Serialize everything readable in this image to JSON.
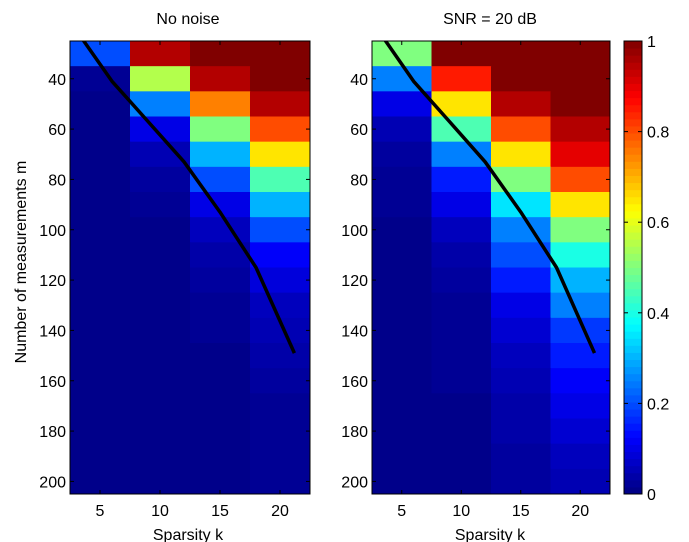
{
  "chart_data": [
    {
      "type": "heatmap",
      "title": "No noise",
      "xlabel": "Sparsity k",
      "ylabel": "Number of measurements m",
      "x_centers": [
        5,
        10,
        15,
        20
      ],
      "x_ticks": [
        5,
        10,
        15,
        20
      ],
      "y_centers": [
        30,
        40,
        50,
        60,
        70,
        80,
        90,
        100,
        110,
        120,
        130,
        140,
        150,
        160,
        170,
        180,
        190,
        200
      ],
      "y_ticks": [
        40,
        60,
        80,
        100,
        120,
        140,
        160,
        180,
        200
      ],
      "y_reversed": true,
      "values": [
        [
          0.2,
          0.95,
          1.0,
          1.0
        ],
        [
          0.02,
          0.55,
          0.95,
          1.0
        ],
        [
          0.01,
          0.25,
          0.75,
          0.95
        ],
        [
          0.01,
          0.1,
          0.5,
          0.8
        ],
        [
          0.01,
          0.05,
          0.3,
          0.65
        ],
        [
          0.01,
          0.03,
          0.2,
          0.45
        ],
        [
          0.01,
          0.02,
          0.1,
          0.3
        ],
        [
          0.01,
          0.01,
          0.06,
          0.2
        ],
        [
          0.01,
          0.01,
          0.04,
          0.12
        ],
        [
          0.01,
          0.01,
          0.03,
          0.09
        ],
        [
          0.01,
          0.01,
          0.02,
          0.06
        ],
        [
          0.01,
          0.01,
          0.02,
          0.05
        ],
        [
          0.01,
          0.01,
          0.01,
          0.04
        ],
        [
          0.01,
          0.01,
          0.01,
          0.03
        ],
        [
          0.01,
          0.01,
          0.01,
          0.02
        ],
        [
          0.01,
          0.01,
          0.01,
          0.02
        ],
        [
          0.01,
          0.01,
          0.01,
          0.02
        ],
        [
          0.01,
          0.01,
          0.01,
          0.02
        ]
      ],
      "curve": {
        "x": [
          3.5,
          6,
          9,
          12,
          15,
          18,
          21.2
        ],
        "y": [
          24,
          41,
          57,
          73,
          93,
          115,
          149
        ]
      }
    },
    {
      "type": "heatmap",
      "title": "SNR = 20 dB",
      "xlabel": "Sparsity k",
      "ylabel": "",
      "x_centers": [
        5,
        10,
        15,
        20
      ],
      "x_ticks": [
        5,
        10,
        15,
        20
      ],
      "y_centers": [
        30,
        40,
        50,
        60,
        70,
        80,
        90,
        100,
        110,
        120,
        130,
        140,
        150,
        160,
        170,
        180,
        190,
        200
      ],
      "y_ticks": [
        40,
        60,
        80,
        100,
        120,
        140,
        160,
        180,
        200
      ],
      "y_reversed": true,
      "values": [
        [
          0.5,
          1.0,
          1.0,
          1.0
        ],
        [
          0.25,
          0.85,
          1.0,
          1.0
        ],
        [
          0.1,
          0.65,
          0.95,
          1.0
        ],
        [
          0.05,
          0.45,
          0.8,
          0.95
        ],
        [
          0.03,
          0.25,
          0.65,
          0.9
        ],
        [
          0.02,
          0.15,
          0.5,
          0.8
        ],
        [
          0.02,
          0.1,
          0.35,
          0.65
        ],
        [
          0.01,
          0.06,
          0.25,
          0.5
        ],
        [
          0.01,
          0.04,
          0.2,
          0.4
        ],
        [
          0.01,
          0.03,
          0.15,
          0.3
        ],
        [
          0.01,
          0.02,
          0.1,
          0.25
        ],
        [
          0.01,
          0.02,
          0.08,
          0.18
        ],
        [
          0.01,
          0.02,
          0.06,
          0.15
        ],
        [
          0.01,
          0.02,
          0.05,
          0.12
        ],
        [
          0.01,
          0.01,
          0.04,
          0.1
        ],
        [
          0.01,
          0.01,
          0.04,
          0.08
        ],
        [
          0.01,
          0.01,
          0.03,
          0.06
        ],
        [
          0.01,
          0.01,
          0.03,
          0.05
        ]
      ],
      "curve": {
        "x": [
          3.5,
          6,
          9,
          12,
          15,
          18,
          21.2
        ],
        "y": [
          24,
          41,
          57,
          73,
          93,
          115,
          149
        ]
      }
    }
  ],
  "colorbar": {
    "min": 0,
    "max": 1,
    "ticks": [
      0,
      0.2,
      0.4,
      0.6,
      0.8,
      1
    ],
    "tick_labels": [
      "0",
      "0.2",
      "0.4",
      "0.6",
      "0.8",
      "1"
    ],
    "colormap": "jet"
  },
  "curve_color": "#000000"
}
